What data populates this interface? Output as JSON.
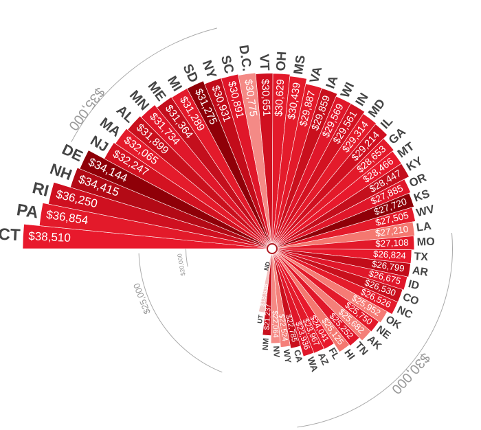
{
  "chart_data": {
    "type": "bar",
    "subtype": "radial",
    "title": "",
    "xlabel": "",
    "ylabel": "",
    "unit": "$",
    "categories": [
      "CT",
      "PA",
      "RI",
      "NH",
      "DE",
      "NJ",
      "MA",
      "AL",
      "MN",
      "ME",
      "MI",
      "SD",
      "NY",
      "SC",
      "D.C.",
      "VT",
      "OH",
      "MS",
      "VA",
      "IA",
      "WI",
      "IN",
      "MD",
      "IL",
      "GA",
      "MT",
      "KY",
      "OR",
      "KS",
      "WV",
      "LA",
      "MO",
      "TX",
      "AR",
      "ID",
      "CO",
      "NC",
      "OK",
      "NE",
      "AK",
      "TN",
      "HI",
      "FL",
      "AZ",
      "WA",
      "CA",
      "WY",
      "NV",
      "NM",
      "UT",
      "ND"
    ],
    "values": [
      38510,
      36854,
      36250,
      34415,
      34144,
      32247,
      32065,
      31899,
      31734,
      31364,
      31289,
      31275,
      30931,
      30891,
      30775,
      30651,
      30629,
      30439,
      29887,
      29859,
      29569,
      29561,
      29314,
      29214,
      28653,
      28466,
      28447,
      27885,
      27720,
      27505,
      27210,
      27108,
      26824,
      26799,
      26675,
      26530,
      26526,
      25952,
      25750,
      25682,
      25252,
      25125,
      24041,
      23967,
      23936,
      22785,
      22524,
      22064,
      21237,
      18838,
      null
    ],
    "value_labels": [
      "$38,510",
      "$36,854",
      "$36,250",
      "$34,415",
      "$34,144",
      "$32,247",
      "$32,065",
      "$31,899",
      "$31,734",
      "$31,364",
      "$31,289",
      "$31,275",
      "$30,931",
      "$30,891",
      "$30,775",
      "$30,651",
      "$30,629",
      "$30,439",
      "$29,887",
      "$29,859",
      "$29,569",
      "$29,561",
      "$29,314",
      "$29,214",
      "$28,653",
      "$28,466",
      "$28,447",
      "$27,885",
      "$27,720",
      "$27,505",
      "$27,210",
      "$27,108",
      "$26,824",
      "$26,799",
      "$26,675",
      "$26,530",
      "$26,526",
      "$25,952",
      "$25,750",
      "$25,682",
      "$25,252",
      "$25,125",
      "$24,041",
      "$23,967",
      "$23,936",
      "$22,785",
      "$22,524",
      "$22,064",
      "$21,237",
      "$18,838",
      ""
    ],
    "colors": [
      "#e8192c",
      "#e31a2a",
      "#cf1020",
      "#b30a16",
      "#8f0008",
      "#d31221",
      "#e41b2b",
      "#c9101d",
      "#e0172a",
      "#c40f1d",
      "#e31a2b",
      "#8f0008",
      "#c20c1a",
      "#e0172a",
      "#f48a86",
      "#d01020",
      "#e31a2b",
      "#e41b2b",
      "#e31a2a",
      "#c9101d",
      "#e0172a",
      "#d31221",
      "#e41b2b",
      "#d01020",
      "#e31a2a",
      "#e8192c",
      "#c40f1d",
      "#e0172a",
      "#8f0008",
      "#e41b2b",
      "#f47870",
      "#e31a2a",
      "#e8192c",
      "#c20c1a",
      "#e0172a",
      "#c9101d",
      "#e41b2b",
      "#f57b75",
      "#e31a2a",
      "#f47f79",
      "#e0172a",
      "#f47870",
      "#e8192c",
      "#e31a2a",
      "#e0172a",
      "#c9101d",
      "#f47f79",
      "#f58a85",
      "#c9101d",
      "#f2c4c2",
      "#ffffff"
    ],
    "rings": [
      {
        "label": "$35,000"
      },
      {
        "label": "$30,000"
      },
      {
        "label": "$25,000"
      },
      {
        "label": "$20,000"
      }
    ],
    "radial_domain": [
      12000,
      38510
    ],
    "grid": false,
    "legend": "none"
  }
}
